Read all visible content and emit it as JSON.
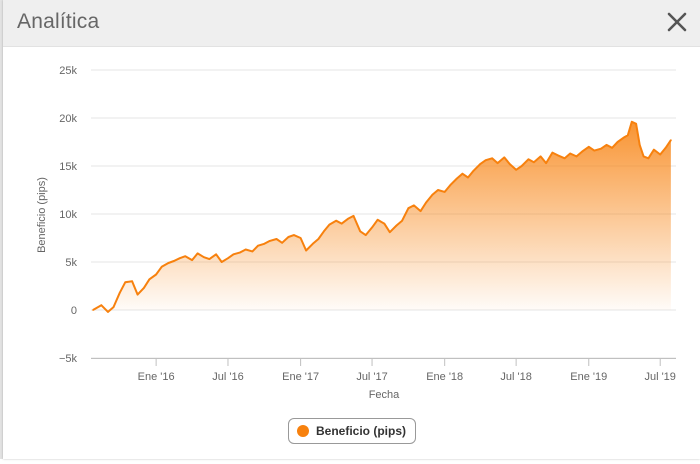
{
  "window": {
    "title": "Analítica"
  },
  "colors": {
    "series": "#f7810e",
    "grid": "#e6e6e6",
    "axis_text": "#666666"
  },
  "icons": {
    "close": "close-icon",
    "legend_marker": "circle-marker-icon"
  },
  "chart_data": {
    "type": "area",
    "xlabel": "Fecha",
    "ylabel": "Beneficio (pips)",
    "ylim": [
      -5000,
      25000
    ],
    "yticks": [
      -5000,
      0,
      5000,
      10000,
      15000,
      20000,
      25000
    ],
    "ytick_labels": [
      "−5k",
      "0",
      "5k",
      "10k",
      "15k",
      "20k",
      "25k"
    ],
    "xlim": [
      "2015-07-20",
      "2019-08-10"
    ],
    "xticks": [
      "2016-01-01",
      "2016-07-01",
      "2017-01-01",
      "2017-07-01",
      "2018-01-01",
      "2018-07-01",
      "2019-01-01",
      "2019-07-01"
    ],
    "xtick_labels": [
      "Ene '16",
      "Jul '16",
      "Ene '17",
      "Jul '17",
      "Ene '18",
      "Jul '18",
      "Ene '19",
      "Jul '19"
    ],
    "grid": true,
    "legend_position": "bottom-center",
    "series": [
      {
        "name": "Beneficio (pips)",
        "x": [
          "2015-07-25",
          "2015-08-15",
          "2015-09-01",
          "2015-09-15",
          "2015-10-01",
          "2015-10-15",
          "2015-11-01",
          "2015-11-15",
          "2015-12-01",
          "2015-12-15",
          "2016-01-01",
          "2016-01-15",
          "2016-02-01",
          "2016-02-15",
          "2016-03-01",
          "2016-03-15",
          "2016-04-01",
          "2016-04-15",
          "2016-05-01",
          "2016-05-15",
          "2016-06-01",
          "2016-06-15",
          "2016-07-01",
          "2016-07-15",
          "2016-08-01",
          "2016-08-15",
          "2016-09-01",
          "2016-09-15",
          "2016-10-01",
          "2016-10-15",
          "2016-11-01",
          "2016-11-15",
          "2016-12-01",
          "2016-12-15",
          "2017-01-01",
          "2017-01-15",
          "2017-02-01",
          "2017-02-15",
          "2017-03-01",
          "2017-03-15",
          "2017-04-01",
          "2017-04-15",
          "2017-05-01",
          "2017-05-15",
          "2017-06-01",
          "2017-06-15",
          "2017-07-01",
          "2017-07-15",
          "2017-08-01",
          "2017-08-15",
          "2017-09-01",
          "2017-09-15",
          "2017-10-01",
          "2017-10-15",
          "2017-11-01",
          "2017-11-15",
          "2017-12-01",
          "2017-12-15",
          "2018-01-01",
          "2018-01-15",
          "2018-02-01",
          "2018-02-15",
          "2018-03-01",
          "2018-03-15",
          "2018-04-01",
          "2018-04-15",
          "2018-05-01",
          "2018-05-15",
          "2018-06-01",
          "2018-06-15",
          "2018-07-01",
          "2018-07-15",
          "2018-08-01",
          "2018-08-15",
          "2018-09-01",
          "2018-09-15",
          "2018-10-01",
          "2018-10-15",
          "2018-11-01",
          "2018-11-15",
          "2018-12-01",
          "2018-12-15",
          "2019-01-01",
          "2019-01-15",
          "2019-02-01",
          "2019-02-15",
          "2019-03-01",
          "2019-03-15",
          "2019-04-01",
          "2019-04-10",
          "2019-04-20",
          "2019-05-01",
          "2019-05-10",
          "2019-05-20",
          "2019-06-01",
          "2019-06-15",
          "2019-07-01",
          "2019-07-15",
          "2019-07-28"
        ],
        "values": [
          0,
          500,
          -200,
          300,
          1800,
          2900,
          3000,
          1600,
          2300,
          3200,
          3700,
          4500,
          4900,
          5100,
          5400,
          5600,
          5200,
          5900,
          5500,
          5300,
          5800,
          5000,
          5400,
          5800,
          6000,
          6300,
          6100,
          6700,
          6900,
          7200,
          7400,
          7000,
          7600,
          7800,
          7500,
          6200,
          6900,
          7400,
          8200,
          8900,
          9300,
          9000,
          9500,
          9800,
          8200,
          7800,
          8600,
          9400,
          9000,
          8100,
          8800,
          9300,
          10600,
          10900,
          10300,
          11200,
          12000,
          12500,
          12300,
          13000,
          13700,
          14200,
          13800,
          14500,
          15200,
          15600,
          15800,
          15300,
          15900,
          15200,
          14600,
          15000,
          15700,
          15400,
          16000,
          15300,
          16400,
          16100,
          15800,
          16300,
          16000,
          16500,
          17000,
          16600,
          16800,
          17200,
          16900,
          17500,
          18000,
          18200,
          19600,
          19400,
          17200,
          16000,
          15800,
          16700,
          16200,
          16900,
          17700
        ]
      }
    ]
  },
  "legend": {
    "label": "Beneficio (pips)"
  }
}
